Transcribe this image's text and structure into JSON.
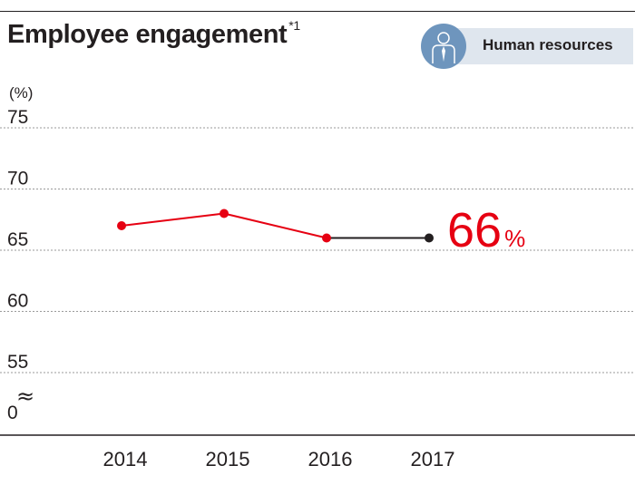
{
  "title": "Employee engagement",
  "title_note": "*1",
  "badge": {
    "label": "Human resources",
    "icon": "person-icon"
  },
  "colors": {
    "accent": "#e60012",
    "dark": "#231f20",
    "badge_bg": "#dfe6ee",
    "badge_icon_bg": "#6e95bd"
  },
  "chart_data": {
    "type": "line",
    "title": "Employee engagement",
    "unit_label": "(%)",
    "x": [
      "2014",
      "2015",
      "2016",
      "2017"
    ],
    "series": [
      {
        "name": "Employee engagement",
        "values": [
          67,
          68,
          66,
          66
        ]
      }
    ],
    "y_ticks": [
      75,
      70,
      65,
      60,
      55,
      0
    ],
    "ylim": [
      55,
      75
    ],
    "axis_break": "≈",
    "highlight_label": {
      "value": "66",
      "unit": "%"
    }
  }
}
